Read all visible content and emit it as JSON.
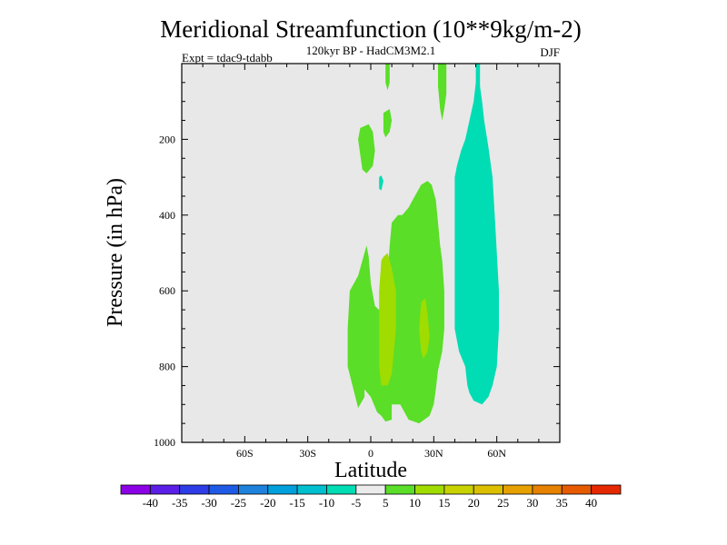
{
  "chart_data": {
    "type": "heatmap",
    "title": "Meridional Streamfunction (10**9kg/m-2)",
    "subtitle": "120kyr BP - HadCM3M2.1",
    "left_label": "Expt = tdac9-tdabb",
    "right_label": "DJF",
    "xlabel": "Latitude",
    "ylabel": "Pressure (in hPa)",
    "xlim": [
      -90,
      90
    ],
    "ylim": [
      0,
      1000
    ],
    "y_inverted": true,
    "x_ticks": [
      {
        "value": -60,
        "label": "60S"
      },
      {
        "value": -30,
        "label": "30S"
      },
      {
        "value": 0,
        "label": "0"
      },
      {
        "value": 30,
        "label": "30N"
      },
      {
        "value": 60,
        "label": "60N"
      }
    ],
    "y_ticks": [
      {
        "value": 200,
        "label": "200"
      },
      {
        "value": 400,
        "label": "400"
      },
      {
        "value": 600,
        "label": "600"
      },
      {
        "value": 800,
        "label": "800"
      },
      {
        "value": 1000,
        "label": "1000"
      }
    ],
    "background_color": "#e8e8e8",
    "colorbar": {
      "labels": [
        "-40",
        "-35",
        "-30",
        "-25",
        "-20",
        "-15",
        "-10",
        "-5",
        "5",
        "10",
        "15",
        "20",
        "25",
        "30",
        "35",
        "40"
      ],
      "colors": [
        "#8c00e6",
        "#5a1ee6",
        "#2d3ce6",
        "#1e5ae6",
        "#1e82dc",
        "#00a0dc",
        "#00c0d0",
        "#00dcb4",
        "#ebebeb",
        "#5ade28",
        "#a0dc00",
        "#c8d200",
        "#dcc000",
        "#e6a000",
        "#e68200",
        "#e65a00",
        "#e62800"
      ]
    },
    "regions": [
      {
        "name": "positive-5-10-column-0-30n",
        "level": "5 to 10",
        "color": "#5ade28",
        "points": [
          [
            -6,
            909
          ],
          [
            -3,
            880
          ],
          [
            -3,
            860
          ],
          [
            0,
            880
          ],
          [
            3,
            920
          ],
          [
            5,
            930
          ],
          [
            7,
            945
          ],
          [
            10,
            940
          ],
          [
            10,
            900
          ],
          [
            14,
            900
          ],
          [
            16,
            920
          ],
          [
            18,
            940
          ],
          [
            23,
            950
          ],
          [
            28,
            930
          ],
          [
            30,
            900
          ],
          [
            31,
            860
          ],
          [
            32,
            810
          ],
          [
            34,
            760
          ],
          [
            35,
            700
          ],
          [
            35,
            600
          ],
          [
            34,
            520
          ],
          [
            33,
            480
          ],
          [
            32,
            420
          ],
          [
            31,
            360
          ],
          [
            29,
            320
          ],
          [
            27,
            310
          ],
          [
            24,
            320
          ],
          [
            21,
            350
          ],
          [
            18,
            380
          ],
          [
            15,
            400
          ],
          [
            13,
            400
          ],
          [
            10,
            420
          ],
          [
            9,
            480
          ],
          [
            8,
            560
          ],
          [
            6,
            620
          ],
          [
            4,
            650
          ],
          [
            2,
            640
          ],
          [
            0,
            580
          ],
          [
            -1,
            510
          ],
          [
            -2,
            480
          ],
          [
            -4,
            520
          ],
          [
            -6,
            560
          ],
          [
            -8,
            580
          ],
          [
            -10,
            600
          ],
          [
            -11,
            700
          ],
          [
            -11,
            800
          ]
        ]
      },
      {
        "name": "positive-5-10-upper-0n",
        "level": "5 to 10",
        "color": "#5ade28",
        "points": [
          [
            -5,
            170
          ],
          [
            -1,
            160
          ],
          [
            1,
            180
          ],
          [
            2,
            230
          ],
          [
            1,
            270
          ],
          [
            -2,
            290
          ],
          [
            -4,
            280
          ],
          [
            -5,
            240
          ],
          [
            -6,
            200
          ]
        ]
      },
      {
        "name": "positive-5-10-small-7n",
        "level": "5 to 10",
        "color": "#5ade28",
        "points": [
          [
            6,
            130
          ],
          [
            9,
            120
          ],
          [
            10,
            150
          ],
          [
            9,
            180
          ],
          [
            7,
            195
          ],
          [
            6,
            180
          ],
          [
            6,
            150
          ]
        ]
      },
      {
        "name": "positive-5-10-top-7n",
        "level": "5 to 10",
        "color": "#5ade28",
        "points": [
          [
            7,
            0
          ],
          [
            9,
            0
          ],
          [
            9,
            50
          ],
          [
            8,
            70
          ],
          [
            7,
            50
          ]
        ]
      },
      {
        "name": "positive-5-10-strip-33n",
        "level": "5 to 10",
        "color": "#5ade28",
        "points": [
          [
            32,
            0
          ],
          [
            36,
            0
          ],
          [
            36,
            80
          ],
          [
            35,
            120
          ],
          [
            34,
            150
          ],
          [
            33,
            120
          ],
          [
            32,
            60
          ]
        ]
      },
      {
        "name": "positive-10-15-core-8n",
        "level": "10 to 15",
        "color": "#a0dc00",
        "points": [
          [
            5,
            520
          ],
          [
            6,
            510
          ],
          [
            8,
            500
          ],
          [
            10,
            540
          ],
          [
            12,
            600
          ],
          [
            12,
            700
          ],
          [
            10,
            820
          ],
          [
            8,
            850
          ],
          [
            5,
            850
          ],
          [
            4,
            800
          ],
          [
            4,
            700
          ],
          [
            4,
            600
          ]
        ]
      },
      {
        "name": "positive-10-15-core-26n",
        "level": "10 to 15",
        "color": "#a0dc00",
        "points": [
          [
            24,
            630
          ],
          [
            26,
            620
          ],
          [
            27,
            660
          ],
          [
            28,
            720
          ],
          [
            27,
            760
          ],
          [
            25,
            780
          ],
          [
            24,
            760
          ],
          [
            23,
            700
          ]
        ]
      },
      {
        "name": "negative-5-10-column-50n",
        "level": "-10 to -5",
        "color": "#00dcb4",
        "points": [
          [
            50,
            0
          ],
          [
            52,
            0
          ],
          [
            52,
            60
          ],
          [
            53,
            100
          ],
          [
            54,
            150
          ],
          [
            56,
            220
          ],
          [
            58,
            300
          ],
          [
            59,
            400
          ],
          [
            60,
            500
          ],
          [
            61,
            600
          ],
          [
            61,
            700
          ],
          [
            60,
            800
          ],
          [
            58,
            850
          ],
          [
            56,
            880
          ],
          [
            53,
            900
          ],
          [
            49,
            890
          ],
          [
            47,
            870
          ],
          [
            46,
            850
          ],
          [
            45,
            800
          ],
          [
            42,
            760
          ],
          [
            40,
            700
          ],
          [
            40,
            600
          ],
          [
            40,
            500
          ],
          [
            40,
            400
          ],
          [
            40,
            300
          ],
          [
            41,
            270
          ],
          [
            43,
            230
          ],
          [
            45,
            200
          ],
          [
            47,
            150
          ],
          [
            49,
            100
          ],
          [
            50,
            50
          ]
        ]
      },
      {
        "name": "negative-5-10-blob-4n",
        "level": "-10 to -5",
        "color": "#00dcb4",
        "points": [
          [
            4,
            300
          ],
          [
            5,
            295
          ],
          [
            6,
            310
          ],
          [
            5,
            335
          ],
          [
            4,
            330
          ]
        ]
      }
    ]
  }
}
